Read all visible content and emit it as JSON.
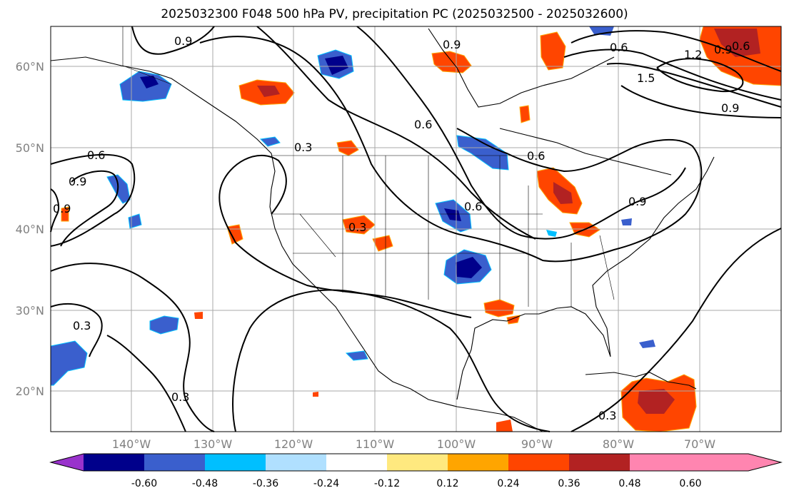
{
  "title": "2025032300 F048 500 hPa PV, precipitation PC (2025032500 - 2025032600)",
  "lat_labels": [
    "60°N",
    "50°N",
    "40°N",
    "30°N",
    "20°N"
  ],
  "lon_labels": [
    "140°W",
    "130°W",
    "120°W",
    "110°W",
    "100°W",
    "90°W",
    "80°W",
    "70°W"
  ],
  "colorbar": {
    "ticks": [
      "-0.60",
      "-0.48",
      "-0.36",
      "-0.24",
      "-0.12",
      "0.12",
      "0.24",
      "0.36",
      "0.48",
      "0.60"
    ],
    "colors": [
      "#9932cc",
      "#00008b",
      "#3a5fcd",
      "#00bfff",
      "#b0e0ff",
      "#ffffff",
      "#ffe97f",
      "#ffa500",
      "#ff4500",
      "#b22222",
      "#ff85b0"
    ]
  },
  "contour_labels": [
    "0.9",
    "0.6",
    "0.9",
    "0.9",
    "0.6",
    "0.3",
    "0.6",
    "0.6",
    "0.3",
    "0.3",
    "0.3",
    "0.9",
    "1.5",
    "1.2",
    "0.9",
    "0.6",
    "0.3",
    "0.9",
    "0.9",
    "0.6"
  ]
}
